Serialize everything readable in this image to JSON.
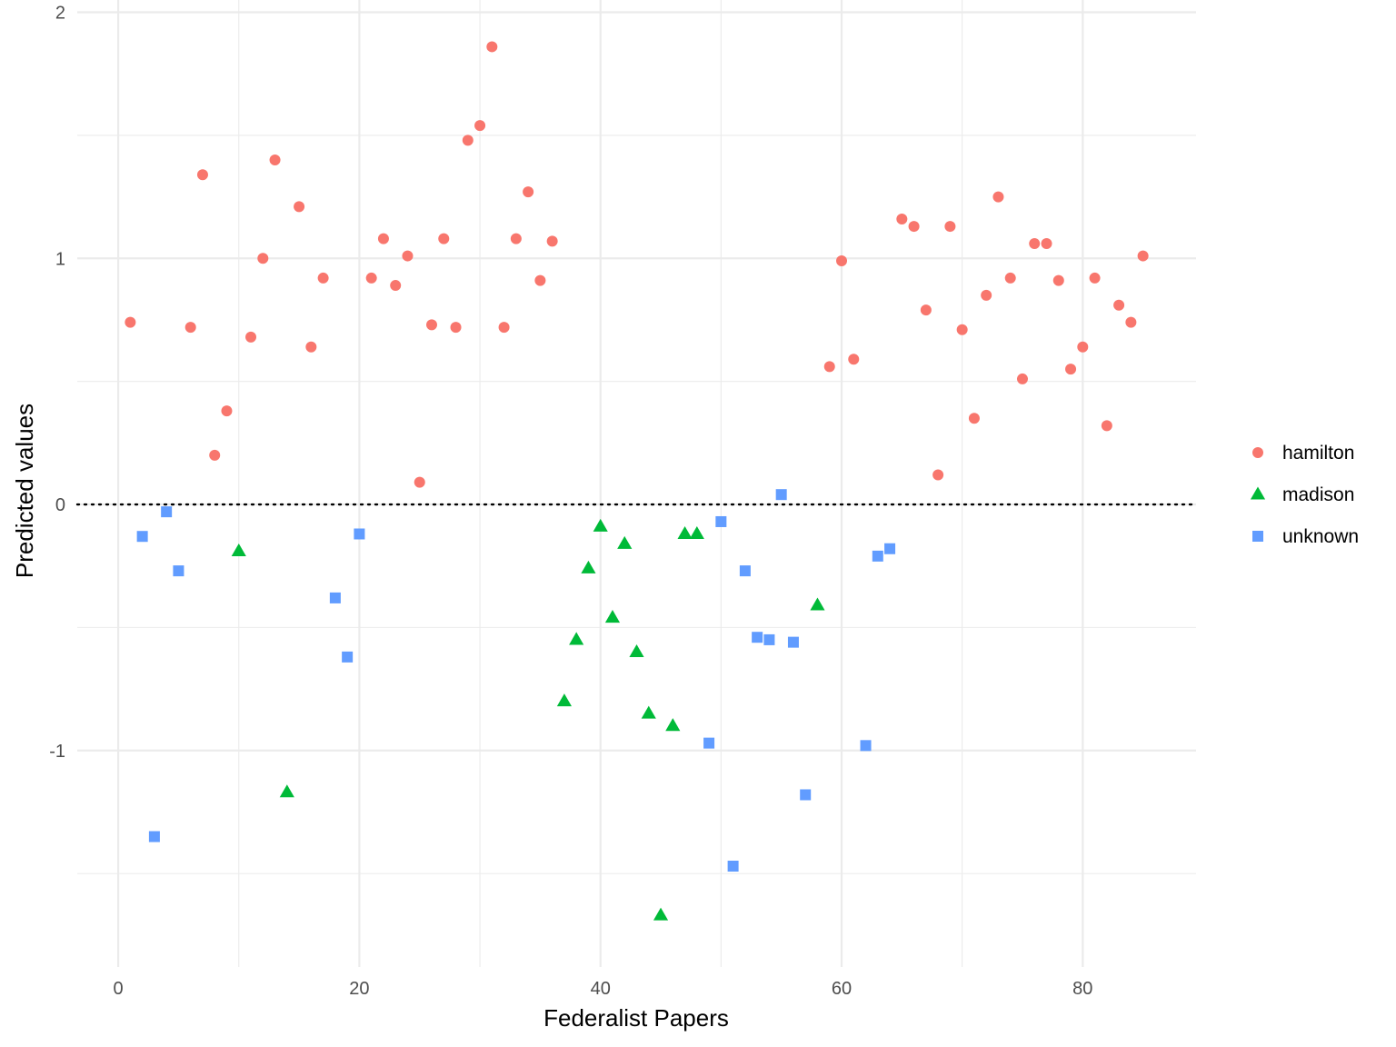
{
  "chart_data": {
    "type": "scatter",
    "xlabel": "Federalist Papers",
    "ylabel": "Predicted values",
    "xlim": [
      -3.4,
      89.4
    ],
    "ylim": [
      -1.88,
      2.05
    ],
    "x_ticks": [
      0,
      20,
      40,
      60,
      80
    ],
    "y_ticks": [
      -1,
      0,
      1,
      2
    ],
    "x_tick_labels": [
      "0",
      "20",
      "40",
      "60",
      "80"
    ],
    "y_tick_labels": [
      "-1",
      "0",
      "1",
      "2"
    ],
    "grid": true,
    "reference_line": {
      "y": 0,
      "style": "dotted"
    },
    "legend_position": "right",
    "colors": {
      "hamilton": "#F8766D",
      "madison": "#00BA38",
      "unknown": "#619CFF"
    },
    "series": [
      {
        "name": "hamilton",
        "shape": "circle",
        "x": [
          1,
          6,
          7,
          8,
          9,
          11,
          12,
          13,
          15,
          16,
          17,
          21,
          22,
          23,
          24,
          25,
          26,
          27,
          28,
          29,
          30,
          31,
          32,
          33,
          34,
          35,
          36,
          59,
          60,
          61,
          65,
          66,
          67,
          68,
          69,
          70,
          71,
          72,
          73,
          74,
          75,
          76,
          77,
          78,
          79,
          80,
          81,
          82,
          83,
          84,
          85
        ],
        "y": [
          0.74,
          0.72,
          1.34,
          0.2,
          0.38,
          0.68,
          1.0,
          1.4,
          1.21,
          0.64,
          0.92,
          0.92,
          1.08,
          0.89,
          1.01,
          0.09,
          0.73,
          1.08,
          0.72,
          1.48,
          1.54,
          1.86,
          0.72,
          1.08,
          1.27,
          0.91,
          1.07,
          0.56,
          0.99,
          0.59,
          1.16,
          1.13,
          0.79,
          0.12,
          1.13,
          0.71,
          0.35,
          0.85,
          1.25,
          0.92,
          0.51,
          1.06,
          1.06,
          0.91,
          0.55,
          0.64,
          0.92,
          0.32,
          0.81,
          0.74,
          1.01
        ]
      },
      {
        "name": "madison",
        "shape": "triangle",
        "x": [
          10,
          14,
          37,
          38,
          39,
          40,
          41,
          42,
          43,
          44,
          45,
          46,
          47,
          48,
          58
        ],
        "y": [
          -0.19,
          -1.17,
          -0.8,
          -0.55,
          -0.26,
          -0.09,
          -0.46,
          -0.16,
          -0.6,
          -0.85,
          -1.67,
          -0.9,
          -0.12,
          -0.12,
          -0.41
        ]
      },
      {
        "name": "unknown",
        "shape": "square",
        "x": [
          2,
          3,
          4,
          5,
          18,
          19,
          20,
          49,
          50,
          51,
          52,
          53,
          54,
          55,
          56,
          57,
          62,
          63,
          64
        ],
        "y": [
          -0.13,
          -1.35,
          -0.03,
          -0.27,
          -0.38,
          -0.62,
          -0.12,
          -0.97,
          -0.07,
          -1.47,
          -0.27,
          -0.54,
          -0.55,
          0.04,
          -0.56,
          -1.18,
          -0.98,
          -0.21,
          -0.18
        ]
      }
    ]
  }
}
